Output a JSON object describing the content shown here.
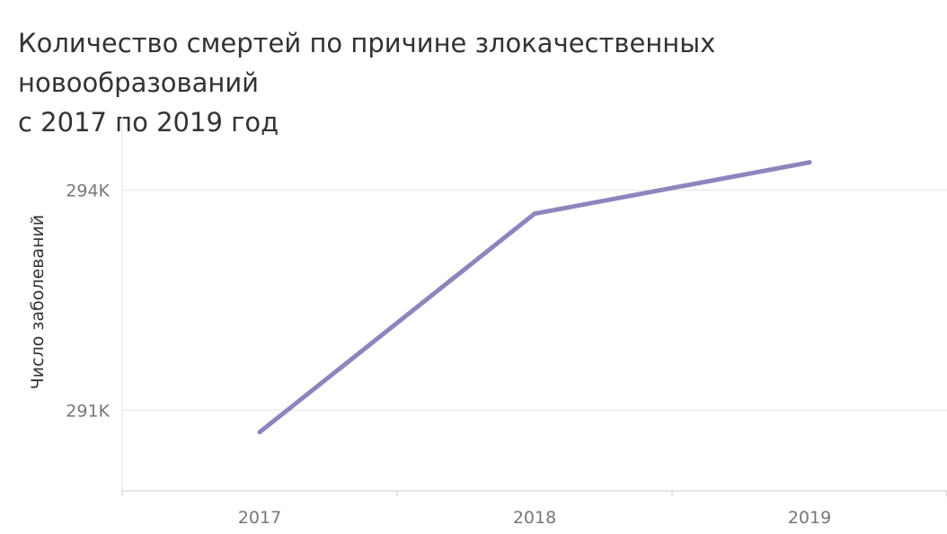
{
  "chart_data": {
    "type": "line",
    "title_lines": [
      "Количество смертей по причине злокачественных новообразований",
      "с 2017 по 2019 год"
    ],
    "ylabel": "Число заболеваний",
    "xlabel": "",
    "x": [
      "2017",
      "2018",
      "2019"
    ],
    "series": [
      {
        "values": [
          290700,
          293680,
          294380
        ]
      }
    ],
    "ylim": [
      289900,
      295000
    ],
    "y_ticks": [
      {
        "value": 291000,
        "label": "291K"
      },
      {
        "value": 294000,
        "label": "294K"
      }
    ],
    "grid": true,
    "line_color": "#8c86bd",
    "grid_color": "#ebebeb",
    "axis_color": "#dddddd"
  }
}
